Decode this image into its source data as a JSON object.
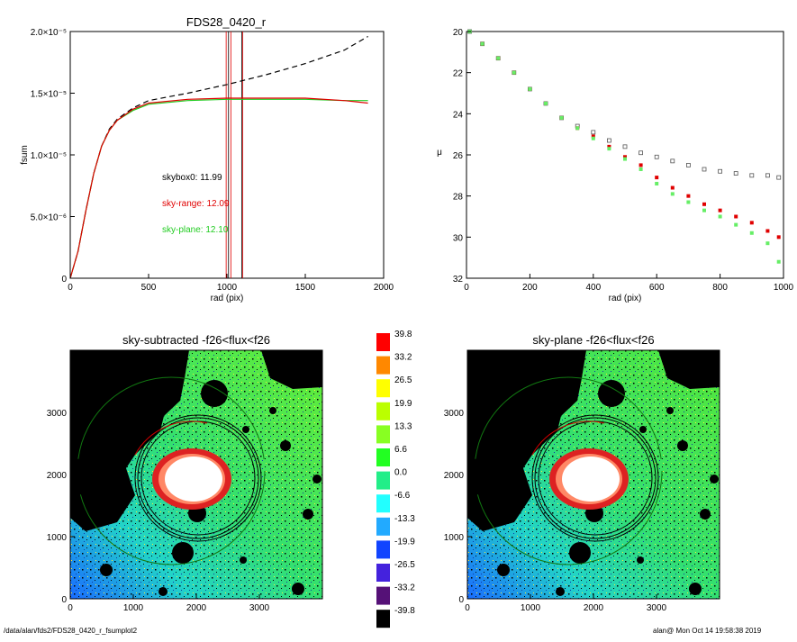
{
  "footer": {
    "path": "/data/alan/fds2/FDS28_0420_r_fsumplot2",
    "stamp": "alan@  Mon Oct 14 19:58:38 2019"
  },
  "chart_data": [
    {
      "type": "line",
      "title": "FDS28_0420_r",
      "xlabel": "rad (pix)",
      "ylabel": "fsum",
      "xlim": [
        0,
        2000
      ],
      "ylim": [
        0,
        2e-05
      ],
      "xticks": [
        "0",
        "500",
        "1000",
        "1500",
        "2000"
      ],
      "yticks": [
        {
          "value": 0,
          "label": "0"
        },
        {
          "value": 5e-06,
          "label": "5.0×10⁻⁶"
        },
        {
          "value": 1e-05,
          "label": "1.0×10⁻⁵"
        },
        {
          "value": 1.5e-05,
          "label": "1.5×10⁻⁵"
        },
        {
          "value": 2e-05,
          "label": "2.0×10⁻⁵"
        }
      ],
      "vlines": [
        {
          "x": 995,
          "color": "#e00000"
        },
        {
          "x": 1025,
          "color": "#e00000"
        },
        {
          "x": 1100,
          "color": "#e00000"
        },
        {
          "x": 1010,
          "color": "#000000"
        },
        {
          "x": 1095,
          "color": "#000000"
        }
      ],
      "series": [
        {
          "style": "dashed",
          "color": "#000000",
          "x": [
            0,
            50,
            100,
            150,
            200,
            250,
            300,
            400,
            500,
            750,
            1000,
            1250,
            1500,
            1750,
            1900
          ],
          "y": [
            0,
            2.2e-06,
            5.5e-06,
            8.5e-06,
            1.07e-05,
            1.21e-05,
            1.29e-05,
            1.38e-05,
            1.44e-05,
            1.5e-05,
            1.57e-05,
            1.65e-05,
            1.74e-05,
            1.85e-05,
            1.96e-05
          ]
        },
        {
          "style": "solid",
          "color": "#22cc22",
          "x": [
            0,
            50,
            100,
            150,
            200,
            250,
            300,
            400,
            500,
            750,
            1000,
            1250,
            1500,
            1750,
            1900
          ],
          "y": [
            0,
            2.2e-06,
            5.5e-06,
            8.5e-06,
            1.07e-05,
            1.2e-05,
            1.28e-05,
            1.36e-05,
            1.41e-05,
            1.44e-05,
            1.45e-05,
            1.45e-05,
            1.45e-05,
            1.44e-05,
            1.44e-05
          ]
        },
        {
          "style": "solid",
          "color": "#e00000",
          "x": [
            0,
            50,
            100,
            150,
            200,
            250,
            300,
            400,
            500,
            750,
            1000,
            1250,
            1500,
            1750,
            1900
          ],
          "y": [
            0,
            2.2e-06,
            5.5e-06,
            8.5e-06,
            1.07e-05,
            1.2e-05,
            1.28e-05,
            1.37e-05,
            1.42e-05,
            1.45e-05,
            1.46e-05,
            1.46e-05,
            1.46e-05,
            1.44e-05,
            1.42e-05
          ]
        }
      ],
      "annotations": [
        {
          "text": "skybox0: 11.99",
          "color": "#000000"
        },
        {
          "text": "sky-range: 12.09",
          "color": "#e00000"
        },
        {
          "text": "sky-plane: 12.10",
          "color": "#22cc22"
        }
      ]
    },
    {
      "type": "scatter",
      "title": "",
      "xlabel": "rad (pix)",
      "ylabel": "μ",
      "xlim": [
        0,
        1000
      ],
      "ylim": [
        32,
        20
      ],
      "xticks": [
        "0",
        "200",
        "400",
        "600",
        "800",
        "1000"
      ],
      "yticks": [
        "20",
        "22",
        "24",
        "26",
        "28",
        "30",
        "32"
      ],
      "series": [
        {
          "color": "#555555",
          "marker": "open-square",
          "x": [
            10,
            50,
            100,
            150,
            200,
            250,
            300,
            350,
            400,
            450,
            500,
            550,
            600,
            650,
            700,
            750,
            800,
            850,
            900,
            950,
            985
          ],
          "y": [
            20.0,
            20.6,
            21.3,
            22.0,
            22.8,
            23.5,
            24.2,
            24.6,
            24.9,
            25.3,
            25.6,
            25.9,
            26.1,
            26.3,
            26.5,
            26.7,
            26.8,
            26.9,
            27.0,
            27.0,
            27.1
          ]
        },
        {
          "color": "#e00000",
          "marker": "filled-square",
          "x": [
            10,
            50,
            100,
            150,
            200,
            250,
            300,
            350,
            400,
            450,
            500,
            550,
            600,
            650,
            700,
            750,
            800,
            850,
            900,
            950,
            985
          ],
          "y": [
            20.0,
            20.6,
            21.3,
            22.0,
            22.8,
            23.5,
            24.2,
            24.7,
            25.1,
            25.6,
            26.1,
            26.5,
            27.1,
            27.6,
            28.0,
            28.4,
            28.7,
            29.0,
            29.3,
            29.7,
            30.0
          ]
        },
        {
          "color": "#66ee66",
          "marker": "filled-square",
          "x": [
            10,
            50,
            100,
            150,
            200,
            250,
            300,
            350,
            400,
            450,
            500,
            550,
            600,
            650,
            700,
            750,
            800,
            850,
            900,
            950,
            985
          ],
          "y": [
            20.0,
            20.6,
            21.3,
            22.0,
            22.8,
            23.5,
            24.2,
            24.7,
            25.2,
            25.7,
            26.2,
            26.7,
            27.4,
            27.9,
            28.3,
            28.7,
            29.0,
            29.4,
            29.8,
            30.3,
            31.2
          ]
        }
      ]
    },
    {
      "type": "heatmap",
      "title": "sky-subtracted -f26<flux<f26",
      "xticks": [
        "0",
        "1000",
        "2000",
        "3000"
      ],
      "yticks": [
        "0",
        "1000",
        "2000",
        "3000"
      ],
      "xlim": [
        0,
        4000
      ],
      "ylim": [
        0,
        4000
      ]
    },
    {
      "type": "heatmap",
      "title": "sky-plane -f26<flux<f26",
      "xticks": [
        "0",
        "1000",
        "2000",
        "3000"
      ],
      "yticks": [
        "0",
        "1000",
        "2000",
        "3000"
      ],
      "xlim": [
        0,
        4000
      ],
      "ylim": [
        0,
        4000
      ]
    }
  ],
  "colorbar": {
    "labels": [
      "39.8",
      "33.2",
      "26.5",
      "19.9",
      "13.3",
      "6.6",
      "0.0",
      "-6.6",
      "-13.3",
      "-19.9",
      "-26.5",
      "-33.2",
      "-39.8"
    ],
    "colors": [
      "#ff0000",
      "#ff8800",
      "#ffff00",
      "#bbff00",
      "#88ff22",
      "#22ff22",
      "#22ee88",
      "#22ffff",
      "#22aaff",
      "#1144ff",
      "#4422dd",
      "#551177",
      "#000000"
    ]
  }
}
